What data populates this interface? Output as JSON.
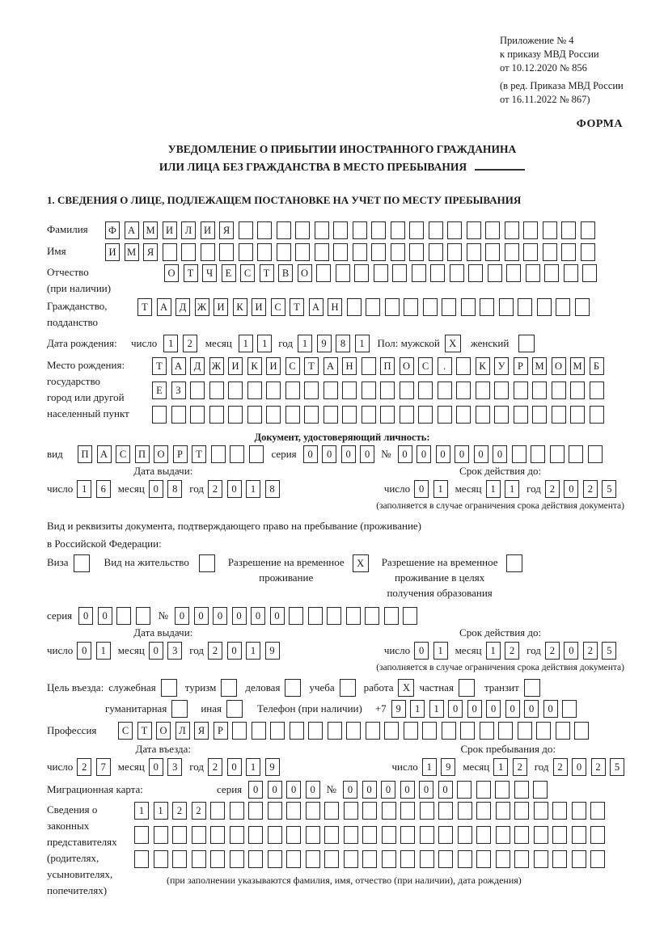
{
  "checkbox_mark": "X",
  "header": {
    "annex": [
      "Приложение № 4",
      "к приказу МВД России",
      "от 10.12.2020 № 856"
    ],
    "annex_note": [
      "(в ред. Приказа МВД России",
      "от 16.11.2022 № 867)"
    ],
    "form_word": "ФОРМА",
    "title_line1": "УВЕДОМЛЕНИЕ О ПРИБЫТИИ ИНОСТРАННОГО ГРАЖДАНИНА",
    "title_line2": "ИЛИ ЛИЦА БЕЗ ГРАЖДАНСТВА В МЕСТО ПРЕБЫВАНИЯ",
    "section1_title": "1. СВЕДЕНИЯ О ЛИЦЕ, ПОДЛЕЖАЩЕМ ПОСТАНОВКЕ НА УЧЕТ ПО МЕСТУ ПРЕБЫВАНИЯ"
  },
  "date_labels": {
    "day": "число",
    "month": "месяц",
    "year": "год"
  },
  "person": {
    "surname": {
      "label": "Фамилия",
      "value": "ФАМИЛИЯ",
      "cells": 26
    },
    "given_name": {
      "label": "Имя",
      "value": "ИМЯ",
      "cells": 26
    },
    "patronymic": {
      "label_line1": "Отчество",
      "label_line2": "(при наличии)",
      "value": "ОТЧЕСТВО",
      "cells": 23
    },
    "citizenship": {
      "label_line1": "Гражданство,",
      "label_line2": "подданство",
      "value": "ТАДЖИКИСТАН",
      "cells": 24
    },
    "birth_date": {
      "label": "Дата рождения:",
      "day": "12",
      "month": "11",
      "year": "1981"
    },
    "gender": {
      "male_label": "Пол: мужской",
      "female_label": "женский",
      "male": true,
      "female": false
    },
    "birth_place": {
      "label_lines": [
        "Место рождения:",
        "государство",
        "город или другой",
        "населенный пункт"
      ],
      "rows": [
        {
          "value": "ТАДЖИКИСТАН ПОС. КУРМОМБ",
          "cells": 24
        },
        {
          "value": "ЕЗ",
          "cells": 24
        },
        {
          "value": "",
          "cells": 24
        }
      ]
    }
  },
  "identity_doc": {
    "heading": "Документ, удостоверяющий личность:",
    "kind_label": "вид",
    "kind": {
      "value": "ПАСПОРТ",
      "cells": 10
    },
    "series_label": "серия",
    "series": {
      "value": "0000",
      "cells": 4
    },
    "number_label": "№",
    "number": {
      "value": "000000",
      "cells": 11
    },
    "issue_title": "Дата выдачи:",
    "issue": {
      "day": "16",
      "month": "08",
      "year": "2018"
    },
    "valid_title": "Срок действия до:",
    "valid": {
      "day": "01",
      "month": "11",
      "year": "2025"
    },
    "note": "(заполняется в случае ограничения срока действия документа)"
  },
  "residence_doc": {
    "intro_line1": "Вид и реквизиты документа, подтверждающего право на пребывание (проживание)",
    "intro_line2": "в Российской Федерации:",
    "visa_label": "Виза",
    "visa_checked": false,
    "residence_permit_label": "Вид на жительство",
    "residence_permit_checked": false,
    "temp_permit_line1": "Разрешение на временное",
    "temp_permit_line2": "проживание",
    "temp_permit_checked": true,
    "temp_permit_edu_line1": "Разрешение на временное",
    "temp_permit_edu_line2": "проживание в целях",
    "temp_permit_edu_line3": "получения образования",
    "temp_permit_edu_checked": false,
    "series_label": "серия",
    "series": {
      "value": "00",
      "cells": 4
    },
    "number_label": "№",
    "number": {
      "value": "000000",
      "cells": 13
    },
    "issue_title": "Дата выдачи:",
    "issue": {
      "day": "01",
      "month": "03",
      "year": "2019"
    },
    "valid_title": "Срок действия до:",
    "valid": {
      "day": "01",
      "month": "12",
      "year": "2025"
    },
    "note": "(заполняется в случае ограничения срока действия документа)"
  },
  "entry_purpose": {
    "label": "Цель въезда:",
    "options_row1": [
      {
        "label": "служебная",
        "checked": false
      },
      {
        "label": "туризм",
        "checked": false
      },
      {
        "label": "деловая",
        "checked": false
      },
      {
        "label": "учеба",
        "checked": false
      },
      {
        "label": "работа",
        "checked": true
      },
      {
        "label": "частная",
        "checked": false
      },
      {
        "label": "транзит",
        "checked": false
      }
    ],
    "options_row2": [
      {
        "label": "гуманитарная",
        "checked": false
      },
      {
        "label": "иная",
        "checked": false
      }
    ],
    "phone_label": "Телефон (при наличии)",
    "phone_prefix": "+7",
    "phone": {
      "value": "911000000",
      "cells": 10
    }
  },
  "profession": {
    "label": "Профессия",
    "value": "СТОЛЯР",
    "cells": 25
  },
  "entry_date": {
    "title": "Дата въезда:",
    "day": "27",
    "month": "03",
    "year": "2019"
  },
  "stay_until": {
    "title": "Срок пребывания до:",
    "day": "19",
    "month": "12",
    "year": "2025"
  },
  "migration_card": {
    "label": "Миграционная карта:",
    "series_label": "серия",
    "series": {
      "value": "0000",
      "cells": 4
    },
    "number_label": "№",
    "number": {
      "value": "000000",
      "cells": 11
    }
  },
  "representatives": {
    "label_lines": [
      "Сведения о",
      "законных",
      "представителях",
      "(родителях,",
      "усыновителях,",
      "попечителях)"
    ],
    "rows": [
      {
        "value": "1122",
        "cells": 25
      },
      {
        "value": "",
        "cells": 25
      },
      {
        "value": "",
        "cells": 25
      }
    ],
    "note": "(при заполнении указываются фамилия, имя, отчество (при наличии), дата рождения)"
  }
}
